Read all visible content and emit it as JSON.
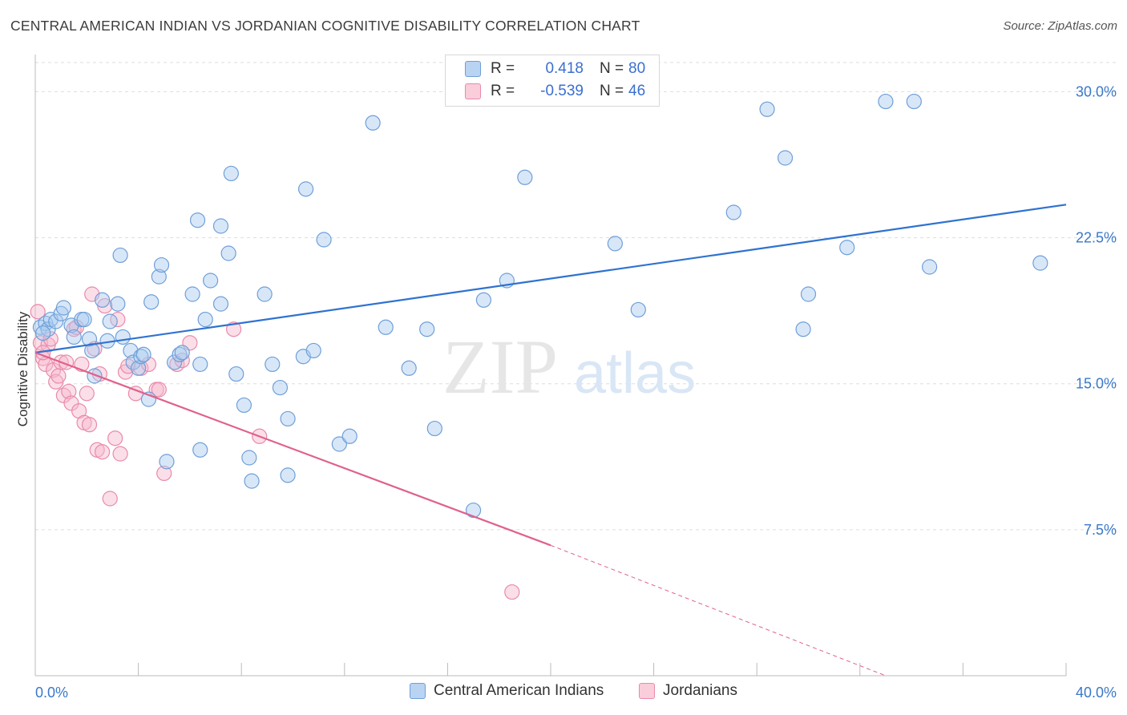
{
  "header": {
    "title": "CENTRAL AMERICAN INDIAN VS JORDANIAN COGNITIVE DISABILITY CORRELATION CHART",
    "source": "Source: ZipAtlas.com"
  },
  "legend": {
    "rows": [
      {
        "r_label": "R =",
        "r_value": "0.418",
        "n_label": "N =",
        "n_value": "80"
      },
      {
        "r_label": "R =",
        "r_value": "-0.539",
        "n_label": "N =",
        "n_value": "46"
      }
    ]
  },
  "watermark": {
    "zip": "ZIP",
    "atlas": "atlas"
  },
  "colors": {
    "blue_fill": "#a9c9f0",
    "blue_stroke": "#6f9fd8",
    "blue_line": "#2f72d0",
    "pink_fill": "#f6b9cd",
    "pink_stroke": "#e98aab",
    "pink_line": "#e0608c",
    "grid": "#dddddd",
    "tick_text": "#3a78c8"
  },
  "chart_data": {
    "type": "scatter",
    "title": "CENTRAL AMERICAN INDIAN VS JORDANIAN COGNITIVE DISABILITY CORRELATION CHART",
    "xlabel": "",
    "ylabel": "Cognitive Disability",
    "xlim": [
      0,
      40
    ],
    "ylim": [
      0,
      31.5
    ],
    "x_tick_labels": [
      "0.0%",
      "40.0%"
    ],
    "y_ticks": [
      7.5,
      15.0,
      22.5,
      30.0
    ],
    "y_tick_labels": [
      "7.5%",
      "15.0%",
      "22.5%",
      "30.0%"
    ],
    "grid": true,
    "legend_position": "bottom",
    "series": [
      {
        "name": "Central American Indians",
        "color": "#a9c9f0",
        "trend": {
          "x": [
            0,
            40
          ],
          "y": [
            16.6,
            24.2
          ]
        },
        "points": [
          [
            0.2,
            17.9
          ],
          [
            0.4,
            18.1
          ],
          [
            0.5,
            17.8
          ],
          [
            0.6,
            18.3
          ],
          [
            0.8,
            18.2
          ],
          [
            1.0,
            18.6
          ],
          [
            1.1,
            18.9
          ],
          [
            1.4,
            18.0
          ],
          [
            1.5,
            17.4
          ],
          [
            1.8,
            18.3
          ],
          [
            1.9,
            18.3
          ],
          [
            2.1,
            17.3
          ],
          [
            2.2,
            16.7
          ],
          [
            2.3,
            15.4
          ],
          [
            2.6,
            19.3
          ],
          [
            2.8,
            17.2
          ],
          [
            2.9,
            18.2
          ],
          [
            3.2,
            19.1
          ],
          [
            3.3,
            21.6
          ],
          [
            3.4,
            17.4
          ],
          [
            3.7,
            16.7
          ],
          [
            3.8,
            16.1
          ],
          [
            4.0,
            15.8
          ],
          [
            4.1,
            16.4
          ],
          [
            4.2,
            16.5
          ],
          [
            4.5,
            19.2
          ],
          [
            4.4,
            14.2
          ],
          [
            4.8,
            20.5
          ],
          [
            4.9,
            21.1
          ],
          [
            5.1,
            11.0
          ],
          [
            5.4,
            16.1
          ],
          [
            5.6,
            16.5
          ],
          [
            5.7,
            16.6
          ],
          [
            6.1,
            19.6
          ],
          [
            6.3,
            23.4
          ],
          [
            6.4,
            16.0
          ],
          [
            6.6,
            18.3
          ],
          [
            6.8,
            20.3
          ],
          [
            6.4,
            11.6
          ],
          [
            7.2,
            19.1
          ],
          [
            7.2,
            23.1
          ],
          [
            7.5,
            21.7
          ],
          [
            7.6,
            25.8
          ],
          [
            7.8,
            15.5
          ],
          [
            8.1,
            13.9
          ],
          [
            8.3,
            11.2
          ],
          [
            8.4,
            10.0
          ],
          [
            8.9,
            19.6
          ],
          [
            9.2,
            16.0
          ],
          [
            9.5,
            14.8
          ],
          [
            9.8,
            13.2
          ],
          [
            9.8,
            10.3
          ],
          [
            10.4,
            16.4
          ],
          [
            10.5,
            25.0
          ],
          [
            10.8,
            16.7
          ],
          [
            11.2,
            22.4
          ],
          [
            11.8,
            11.9
          ],
          [
            12.2,
            12.3
          ],
          [
            13.1,
            28.4
          ],
          [
            13.6,
            17.9
          ],
          [
            14.5,
            15.8
          ],
          [
            15.2,
            17.8
          ],
          [
            15.5,
            12.7
          ],
          [
            17.0,
            8.5
          ],
          [
            17.4,
            19.3
          ],
          [
            18.3,
            20.3
          ],
          [
            19.0,
            25.6
          ],
          [
            22.5,
            22.2
          ],
          [
            23.4,
            18.8
          ],
          [
            27.1,
            23.8
          ],
          [
            28.4,
            29.1
          ],
          [
            29.1,
            26.6
          ],
          [
            29.8,
            17.8
          ],
          [
            30.0,
            19.6
          ],
          [
            31.5,
            22.0
          ],
          [
            33.0,
            29.5
          ],
          [
            34.1,
            29.5
          ],
          [
            34.7,
            21.0
          ],
          [
            39.0,
            21.2
          ],
          [
            0.3,
            17.6
          ]
        ]
      },
      {
        "name": "Jordanians",
        "color": "#f6b9cd",
        "trend": {
          "x": [
            0,
            20
          ],
          "y": [
            16.6,
            6.7
          ]
        },
        "trend_dashed": {
          "x": [
            20,
            33
          ],
          "y": [
            6.7,
            0
          ]
        },
        "points": [
          [
            0.1,
            18.7
          ],
          [
            0.2,
            17.1
          ],
          [
            0.3,
            16.3
          ],
          [
            0.4,
            16.0
          ],
          [
            0.5,
            17.0
          ],
          [
            0.6,
            17.3
          ],
          [
            0.7,
            15.7
          ],
          [
            0.8,
            15.1
          ],
          [
            0.9,
            15.4
          ],
          [
            1.0,
            16.1
          ],
          [
            1.1,
            14.4
          ],
          [
            1.2,
            16.1
          ],
          [
            1.3,
            14.6
          ],
          [
            1.4,
            14.0
          ],
          [
            1.5,
            17.8
          ],
          [
            1.6,
            17.9
          ],
          [
            1.7,
            13.6
          ],
          [
            1.8,
            16.0
          ],
          [
            1.9,
            13.0
          ],
          [
            2.0,
            14.5
          ],
          [
            2.1,
            12.9
          ],
          [
            2.2,
            19.6
          ],
          [
            2.3,
            16.8
          ],
          [
            2.4,
            11.6
          ],
          [
            2.5,
            15.5
          ],
          [
            2.6,
            11.5
          ],
          [
            2.7,
            19.0
          ],
          [
            2.9,
            9.1
          ],
          [
            3.1,
            12.2
          ],
          [
            3.2,
            18.3
          ],
          [
            3.3,
            11.4
          ],
          [
            3.5,
            15.6
          ],
          [
            3.6,
            15.9
          ],
          [
            3.9,
            14.5
          ],
          [
            4.1,
            15.8
          ],
          [
            4.4,
            16.0
          ],
          [
            4.7,
            14.7
          ],
          [
            4.8,
            14.7
          ],
          [
            5.0,
            10.4
          ],
          [
            5.5,
            16.0
          ],
          [
            5.7,
            16.2
          ],
          [
            6.0,
            17.1
          ],
          [
            7.7,
            17.8
          ],
          [
            8.7,
            12.3
          ],
          [
            18.5,
            4.3
          ],
          [
            0.3,
            16.6
          ]
        ]
      }
    ]
  }
}
